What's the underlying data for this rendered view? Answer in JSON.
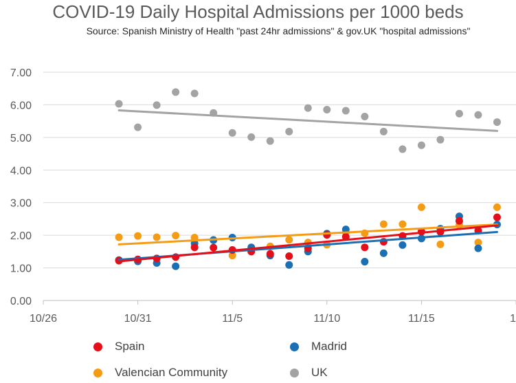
{
  "chart_data": {
    "type": "scatter",
    "title": "COVID-19 Daily Hospital Admissions per 1000 beds",
    "subtitle": "Source: Spanish Ministry of Health \"past 24hr admissions\" & gov.UK \"hospital admissions\"",
    "xlabel": "",
    "ylabel": "",
    "x_ticks": [
      "10/26",
      "10/31",
      "11/5",
      "11/10",
      "11/15",
      "1"
    ],
    "x_tick_values": [
      0,
      5,
      10,
      15,
      20,
      25
    ],
    "xlim": [
      0,
      25
    ],
    "y_ticks": [
      "0.00",
      "1.00",
      "2.00",
      "3.00",
      "4.00",
      "5.00",
      "6.00",
      "7.00"
    ],
    "ylim": [
      0,
      7
    ],
    "grid": "horizontal",
    "legend_position": "bottom",
    "x": [
      4,
      5,
      6,
      7,
      8,
      9,
      10,
      11,
      12,
      13,
      14,
      15,
      16,
      17,
      18,
      19,
      20,
      21,
      22,
      23,
      24
    ],
    "series": [
      {
        "name": "Spain",
        "color": "#e3101a",
        "values": [
          1.22,
          1.26,
          1.29,
          1.33,
          1.63,
          1.62,
          1.55,
          1.5,
          1.43,
          1.36,
          1.6,
          2.01,
          1.95,
          1.63,
          1.8,
          1.98,
          2.11,
          2.1,
          2.44,
          2.14,
          2.55
        ],
        "trend": [
          1.2,
          2.3
        ]
      },
      {
        "name": "Madrid",
        "color": "#1b6fb5",
        "values": [
          1.24,
          1.2,
          1.15,
          1.05,
          1.75,
          1.85,
          1.93,
          1.63,
          1.38,
          1.09,
          1.5,
          2.05,
          2.18,
          1.19,
          1.45,
          1.7,
          1.9,
          2.2,
          2.58,
          1.6,
          2.33
        ],
        "trend": [
          1.25,
          2.1
        ]
      },
      {
        "name": "Valencian Community",
        "color": "#f59c16",
        "values": [
          1.94,
          1.98,
          1.94,
          1.99,
          1.93,
          1.86,
          1.38,
          1.51,
          1.66,
          1.86,
          1.78,
          1.71,
          2.08,
          2.06,
          2.34,
          2.34,
          2.86,
          1.72,
          2.31,
          1.78,
          2.86
        ],
        "trend": [
          1.72,
          2.33
        ]
      },
      {
        "name": "UK",
        "color": "#a3a3a3",
        "values": [
          6.03,
          5.31,
          5.99,
          6.39,
          6.35,
          5.75,
          5.14,
          5.01,
          4.89,
          5.18,
          5.9,
          5.85,
          5.82,
          5.64,
          5.18,
          4.64,
          4.76,
          4.93,
          5.73,
          5.69,
          5.47
        ],
        "trend": [
          5.83,
          5.2
        ]
      }
    ]
  }
}
